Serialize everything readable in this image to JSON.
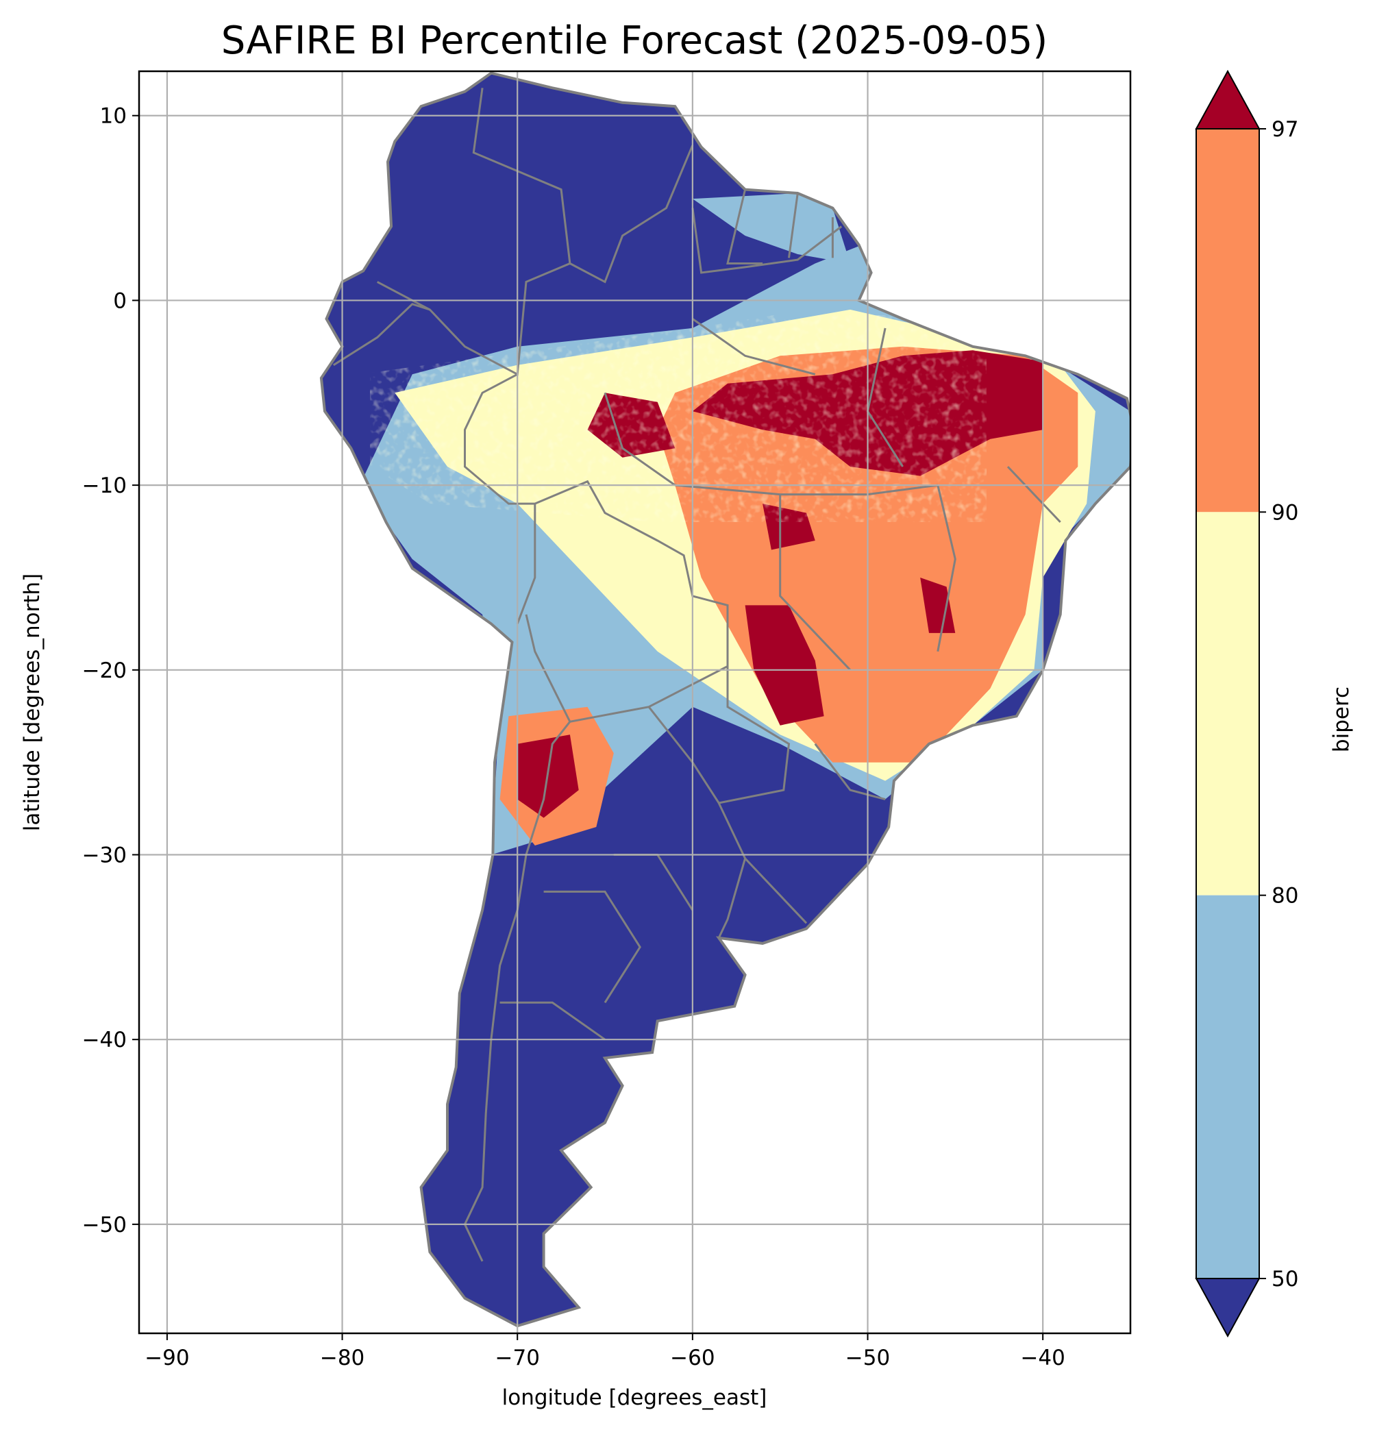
{
  "chart_data": {
    "type": "heatmap",
    "title": "SAFIRE BI Percentile Forecast (2025-09-05)",
    "xlabel": "longitude [degrees_east]",
    "ylabel": "latitude [degrees_north]",
    "xlim": [
      -91.6,
      -35.0
    ],
    "ylim": [
      -55.9,
      12.4
    ],
    "x_ticks": [
      -90,
      -80,
      -70,
      -60,
      -50,
      -40
    ],
    "y_ticks": [
      10,
      0,
      -10,
      -20,
      -30,
      -40,
      -50
    ],
    "x_tick_labels": [
      "−90",
      "−80",
      "−70",
      "−60",
      "−50",
      "−40"
    ],
    "y_tick_labels": [
      "10",
      "0",
      "−10",
      "−20",
      "−30",
      "−40",
      "−50"
    ],
    "grid": true,
    "grid_color": "#b0b0b0",
    "border_color": "#808080",
    "colorbar": {
      "label": "biperc",
      "ticks": [
        50,
        80,
        90,
        97
      ],
      "tick_labels": [
        "50",
        "80",
        "90",
        "97"
      ],
      "extend": "both",
      "bins": [
        {
          "range": "<50",
          "color": "#313695"
        },
        {
          "range": "50-80",
          "color": "#91bfdb"
        },
        {
          "range": "80-90",
          "color": "#fefcbf"
        },
        {
          "range": "90-97",
          "color": "#fc8d59"
        },
        {
          "range": ">97",
          "color": "#a50026"
        }
      ]
    }
  }
}
